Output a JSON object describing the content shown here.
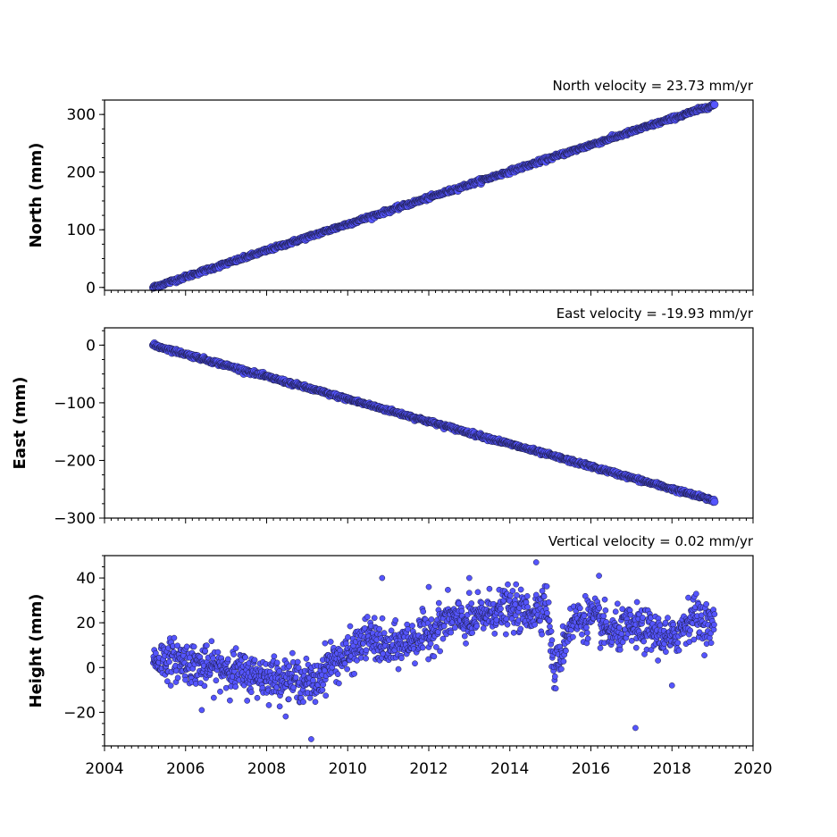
{
  "chart_data": [
    {
      "type": "scatter",
      "title": "North velocity = 23.73 mm/yr",
      "ylabel": "North (mm)",
      "xlim": [
        2004,
        2020
      ],
      "ylim": [
        -5,
        325
      ],
      "yticks": [
        0,
        100,
        200,
        300
      ],
      "ytick_labels": [
        "0",
        "100",
        "200",
        "300"
      ],
      "color": "#5555ff",
      "trend": {
        "x0": 2005.2,
        "y0": 0,
        "x1": 2019.05,
        "y1": 317
      },
      "series": [
        {
          "x": [
            2005.2,
            2005.6,
            2006.0,
            2006.5,
            2007.0,
            2007.5,
            2008.0,
            2008.5,
            2009.0,
            2009.5,
            2010.0,
            2010.5,
            2011.0,
            2011.5,
            2012.0,
            2012.5,
            2013.0,
            2013.5,
            2014.0,
            2014.5,
            2015.0,
            2015.5,
            2016.0,
            2016.5,
            2017.0,
            2017.5,
            2018.0,
            2018.5,
            2019.05
          ],
          "y": [
            0,
            8,
            17,
            28,
            40,
            51,
            62,
            74,
            86,
            97,
            110,
            121,
            133,
            145,
            157,
            168,
            180,
            193,
            203,
            215,
            226,
            238,
            250,
            262,
            273,
            285,
            297,
            306,
            317
          ]
        }
      ]
    },
    {
      "type": "scatter",
      "title": "East velocity = -19.93 mm/yr",
      "ylabel": "East (mm)",
      "xlim": [
        2004,
        2020
      ],
      "ylim": [
        -300,
        30
      ],
      "yticks": [
        0,
        -100,
        -200,
        -300
      ],
      "ytick_labels": [
        "0",
        "−100",
        "−200",
        "−300"
      ],
      "color": "#5555ff",
      "trend": {
        "x0": 2005.2,
        "y0": 0,
        "x1": 2019.05,
        "y1": -270
      },
      "series": [
        {
          "x": [
            2005.2,
            2005.6,
            2006.0,
            2006.5,
            2007.0,
            2007.5,
            2008.0,
            2008.5,
            2009.0,
            2009.5,
            2010.0,
            2010.5,
            2011.0,
            2011.5,
            2012.0,
            2012.5,
            2013.0,
            2013.5,
            2014.0,
            2014.5,
            2015.0,
            2015.5,
            2016.0,
            2016.5,
            2017.0,
            2017.5,
            2018.0,
            2018.5,
            2019.05
          ],
          "y": [
            0,
            -8,
            -16,
            -26,
            -36,
            -46,
            -56,
            -66,
            -76,
            -86,
            -96,
            -106,
            -115,
            -125,
            -135,
            -144,
            -154,
            -164,
            -174,
            -184,
            -194,
            -204,
            -213,
            -223,
            -233,
            -243,
            -253,
            -262,
            -270
          ]
        }
      ]
    },
    {
      "type": "scatter",
      "title": "Vertical velocity = 0.02 mm/yr",
      "ylabel": "Height (mm)",
      "xlabel": "",
      "xlim": [
        2004,
        2020
      ],
      "ylim": [
        -35,
        50
      ],
      "yticks": [
        -20,
        0,
        20,
        40
      ],
      "ytick_labels": [
        "−20",
        "0",
        "20",
        "40"
      ],
      "xticks": [
        2004,
        2006,
        2008,
        2010,
        2012,
        2014,
        2016,
        2018,
        2020
      ],
      "xtick_labels": [
        "2004",
        "2006",
        "2008",
        "2010",
        "2012",
        "2014",
        "2016",
        "2018",
        "2020"
      ],
      "color": "#5555ff",
      "series": [
        {
          "x": [
            2005.2,
            2005.5,
            2006.0,
            2006.5,
            2007.0,
            2007.5,
            2008.0,
            2008.5,
            2009.0,
            2009.2,
            2009.5,
            2010.0,
            2010.5,
            2011.0,
            2011.5,
            2012.0,
            2012.5,
            2013.0,
            2013.5,
            2014.0,
            2014.5,
            2014.9,
            2015.1,
            2015.5,
            2016.0,
            2016.5,
            2017.0,
            2017.5,
            2018.0,
            2018.5,
            2019.0
          ],
          "y": [
            3,
            4,
            3,
            0,
            0,
            -3,
            -4,
            -5,
            -6,
            -8,
            2,
            5,
            14,
            8,
            12,
            15,
            22,
            20,
            25,
            26,
            24,
            30,
            -3,
            20,
            23,
            15,
            18,
            16,
            12,
            24,
            18
          ]
        }
      ],
      "outliers": {
        "x": [
          2009.1,
          2010.85,
          2012.0,
          2013.0,
          2014.65,
          2016.2,
          2017.1,
          2018.0,
          2006.4
        ],
        "y": [
          -32,
          40,
          36,
          40,
          47,
          41,
          -27,
          -8,
          -19
        ]
      }
    }
  ]
}
